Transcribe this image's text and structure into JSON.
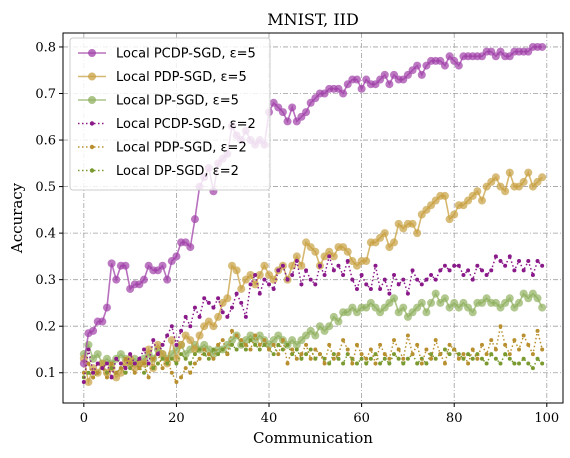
{
  "chart_data": {
    "type": "line",
    "title": "MNIST, IID",
    "xlabel": "Communication",
    "ylabel": "Accuracy",
    "xlim": [
      -4.5,
      103.5
    ],
    "ylim": [
      0.035,
      0.83
    ],
    "x_ticks": [
      0,
      20,
      40,
      60,
      80,
      100
    ],
    "x_tick_labels": [
      "0",
      "20",
      "40",
      "60",
      "80",
      "100"
    ],
    "y_ticks": [
      0.1,
      0.2,
      0.3,
      0.4,
      0.5,
      0.6,
      0.7,
      0.8
    ],
    "y_tick_labels": [
      "0.1",
      "0.2",
      "0.3",
      "0.4",
      "0.5",
      "0.6",
      "0.7",
      "0.8"
    ],
    "grid": true,
    "legend_position": "upper-left",
    "series": [
      {
        "name": "Local PCDP-SGD, ε=5",
        "color": "#a040a8",
        "style": "solid",
        "marker": "circle",
        "values": [
          0.12,
          0.185,
          0.19,
          0.21,
          0.21,
          0.24,
          0.335,
          0.3,
          0.33,
          0.33,
          0.28,
          0.29,
          0.29,
          0.3,
          0.33,
          0.32,
          0.32,
          0.33,
          0.3,
          0.34,
          0.35,
          0.38,
          0.38,
          0.37,
          0.43,
          0.5,
          0.52,
          0.54,
          0.49,
          0.55,
          0.56,
          0.57,
          0.63,
          0.61,
          0.6,
          0.62,
          0.6,
          0.59,
          0.6,
          0.59,
          0.66,
          0.68,
          0.67,
          0.66,
          0.64,
          0.67,
          0.64,
          0.65,
          0.66,
          0.68,
          0.69,
          0.7,
          0.7,
          0.71,
          0.71,
          0.71,
          0.7,
          0.72,
          0.73,
          0.73,
          0.71,
          0.73,
          0.72,
          0.72,
          0.73,
          0.74,
          0.72,
          0.74,
          0.73,
          0.73,
          0.74,
          0.75,
          0.76,
          0.74,
          0.76,
          0.77,
          0.77,
          0.77,
          0.76,
          0.78,
          0.77,
          0.76,
          0.78,
          0.78,
          0.78,
          0.78,
          0.78,
          0.79,
          0.79,
          0.78,
          0.79,
          0.78,
          0.78,
          0.79,
          0.79,
          0.79,
          0.79,
          0.8,
          0.8,
          0.8
        ]
      },
      {
        "name": "Local PDP-SGD, ε=5",
        "color": "#c8a040",
        "style": "solid",
        "marker": "circle",
        "values": [
          0.13,
          0.08,
          0.11,
          0.1,
          0.12,
          0.1,
          0.11,
          0.09,
          0.1,
          0.12,
          0.13,
          0.11,
          0.12,
          0.12,
          0.15,
          0.11,
          0.16,
          0.14,
          0.12,
          0.17,
          0.13,
          0.16,
          0.18,
          0.17,
          0.15,
          0.18,
          0.2,
          0.21,
          0.2,
          0.22,
          0.25,
          0.26,
          0.33,
          0.32,
          0.28,
          0.3,
          0.31,
          0.29,
          0.31,
          0.33,
          0.31,
          0.3,
          0.32,
          0.33,
          0.3,
          0.33,
          0.35,
          0.33,
          0.38,
          0.37,
          0.36,
          0.33,
          0.35,
          0.36,
          0.35,
          0.37,
          0.37,
          0.36,
          0.34,
          0.33,
          0.34,
          0.34,
          0.38,
          0.38,
          0.39,
          0.4,
          0.37,
          0.38,
          0.42,
          0.41,
          0.42,
          0.42,
          0.4,
          0.44,
          0.45,
          0.46,
          0.47,
          0.48,
          0.48,
          0.43,
          0.44,
          0.46,
          0.46,
          0.47,
          0.48,
          0.49,
          0.47,
          0.5,
          0.51,
          0.52,
          0.5,
          0.49,
          0.53,
          0.5,
          0.5,
          0.51,
          0.53,
          0.5,
          0.51,
          0.52
        ]
      },
      {
        "name": "Local DP-SGD, ε=5",
        "color": "#90b060",
        "style": "solid",
        "marker": "circle",
        "values": [
          0.14,
          0.16,
          0.13,
          0.14,
          0.12,
          0.13,
          0.12,
          0.13,
          0.14,
          0.13,
          0.12,
          0.13,
          0.12,
          0.13,
          0.14,
          0.13,
          0.15,
          0.14,
          0.13,
          0.14,
          0.15,
          0.16,
          0.14,
          0.15,
          0.16,
          0.15,
          0.16,
          0.15,
          0.14,
          0.15,
          0.15,
          0.16,
          0.17,
          0.18,
          0.16,
          0.17,
          0.18,
          0.17,
          0.18,
          0.17,
          0.16,
          0.17,
          0.18,
          0.17,
          0.16,
          0.17,
          0.16,
          0.17,
          0.18,
          0.19,
          0.18,
          0.2,
          0.19,
          0.2,
          0.22,
          0.21,
          0.23,
          0.23,
          0.24,
          0.23,
          0.24,
          0.24,
          0.25,
          0.24,
          0.23,
          0.24,
          0.25,
          0.26,
          0.23,
          0.24,
          0.22,
          0.23,
          0.24,
          0.25,
          0.23,
          0.25,
          0.27,
          0.25,
          0.26,
          0.24,
          0.25,
          0.24,
          0.25,
          0.24,
          0.23,
          0.25,
          0.25,
          0.26,
          0.25,
          0.25,
          0.24,
          0.25,
          0.26,
          0.24,
          0.25,
          0.27,
          0.26,
          0.27,
          0.26,
          0.24
        ]
      },
      {
        "name": "Local PCDP-SGD, ε=2",
        "color": "#8a1a8a",
        "style": "dotted",
        "marker": "dot",
        "values": [
          0.08,
          0.15,
          0.1,
          0.12,
          0.11,
          0.12,
          0.09,
          0.13,
          0.12,
          0.11,
          0.14,
          0.12,
          0.13,
          0.15,
          0.12,
          0.17,
          0.14,
          0.16,
          0.18,
          0.2,
          0.16,
          0.19,
          0.22,
          0.2,
          0.24,
          0.22,
          0.26,
          0.25,
          0.24,
          0.26,
          0.23,
          0.22,
          0.24,
          0.27,
          0.25,
          0.22,
          0.29,
          0.31,
          0.27,
          0.3,
          0.29,
          0.28,
          0.32,
          0.33,
          0.3,
          0.31,
          0.34,
          0.29,
          0.32,
          0.3,
          0.29,
          0.33,
          0.31,
          0.35,
          0.32,
          0.33,
          0.31,
          0.34,
          0.3,
          0.28,
          0.31,
          0.29,
          0.28,
          0.33,
          0.28,
          0.3,
          0.27,
          0.31,
          0.29,
          0.3,
          0.27,
          0.32,
          0.3,
          0.29,
          0.3,
          0.31,
          0.3,
          0.32,
          0.33,
          0.32,
          0.33,
          0.33,
          0.31,
          0.32,
          0.3,
          0.33,
          0.32,
          0.31,
          0.32,
          0.35,
          0.34,
          0.33,
          0.35,
          0.32,
          0.34,
          0.32,
          0.34,
          0.31,
          0.34,
          0.33
        ]
      },
      {
        "name": "Local PDP-SGD, ε=2",
        "color": "#b89030",
        "style": "dotted",
        "marker": "dot",
        "values": [
          0.1,
          0.12,
          0.09,
          0.1,
          0.11,
          0.09,
          0.12,
          0.1,
          0.11,
          0.13,
          0.12,
          0.1,
          0.11,
          0.12,
          0.09,
          0.13,
          0.14,
          0.11,
          0.13,
          0.1,
          0.08,
          0.09,
          0.11,
          0.1,
          0.12,
          0.13,
          0.15,
          0.14,
          0.13,
          0.16,
          0.17,
          0.14,
          0.19,
          0.18,
          0.17,
          0.16,
          0.15,
          0.18,
          0.16,
          0.17,
          0.15,
          0.16,
          0.14,
          0.17,
          0.12,
          0.15,
          0.13,
          0.14,
          0.16,
          0.13,
          0.15,
          0.14,
          0.12,
          0.16,
          0.13,
          0.14,
          0.17,
          0.15,
          0.12,
          0.16,
          0.14,
          0.13,
          0.15,
          0.12,
          0.16,
          0.14,
          0.13,
          0.17,
          0.15,
          0.13,
          0.18,
          0.14,
          0.16,
          0.12,
          0.15,
          0.13,
          0.17,
          0.14,
          0.12,
          0.16,
          0.15,
          0.13,
          0.14,
          0.12,
          0.15,
          0.13,
          0.16,
          0.14,
          0.17,
          0.15,
          0.2,
          0.16,
          0.14,
          0.17,
          0.15,
          0.18,
          0.16,
          0.14,
          0.19,
          0.15
        ]
      },
      {
        "name": "Local DP-SGD, ε=2",
        "color": "#7a9a30",
        "style": "dotted",
        "marker": "dot",
        "values": [
          0.09,
          0.1,
          0.09,
          0.1,
          0.11,
          0.1,
          0.11,
          0.1,
          0.11,
          0.1,
          0.11,
          0.12,
          0.11,
          0.1,
          0.12,
          0.11,
          0.12,
          0.13,
          0.12,
          0.13,
          0.12,
          0.14,
          0.13,
          0.12,
          0.14,
          0.15,
          0.14,
          0.13,
          0.15,
          0.14,
          0.15,
          0.14,
          0.16,
          0.15,
          0.16,
          0.15,
          0.17,
          0.16,
          0.15,
          0.16,
          0.15,
          0.14,
          0.16,
          0.15,
          0.16,
          0.14,
          0.15,
          0.13,
          0.14,
          0.15,
          0.13,
          0.14,
          0.13,
          0.12,
          0.14,
          0.13,
          0.12,
          0.14,
          0.13,
          0.12,
          0.13,
          0.12,
          0.13,
          0.14,
          0.12,
          0.13,
          0.12,
          0.14,
          0.13,
          0.12,
          0.13,
          0.14,
          0.12,
          0.13,
          0.12,
          0.14,
          0.13,
          0.14,
          0.15,
          0.14,
          0.15,
          0.14,
          0.13,
          0.14,
          0.13,
          0.14,
          0.13,
          0.12,
          0.14,
          0.13,
          0.12,
          0.14,
          0.13,
          0.12,
          0.12,
          0.13,
          0.12,
          0.11,
          0.13,
          0.12
        ]
      }
    ]
  }
}
